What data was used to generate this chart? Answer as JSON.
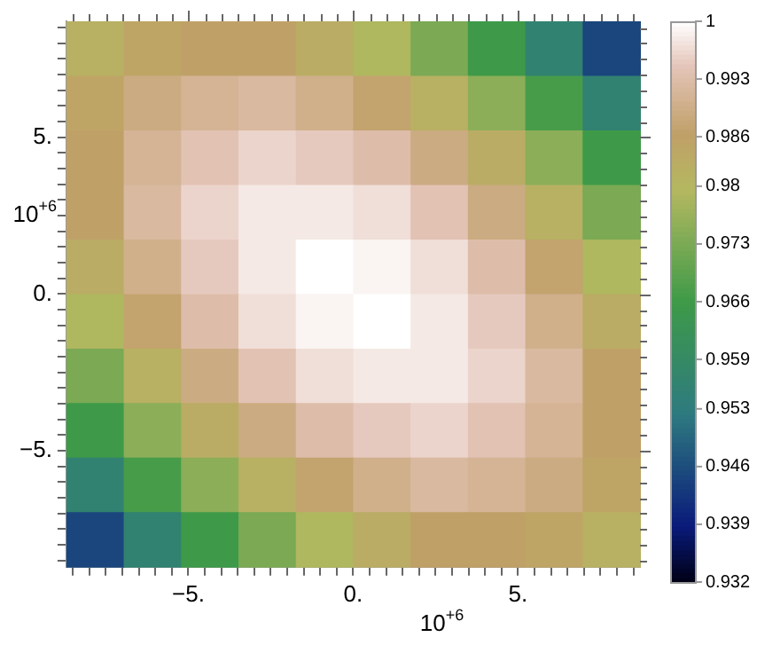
{
  "chart_data": {
    "type": "heatmap",
    "xlabel": "10$^{+6}$",
    "ylabel": "10$^{+6}$",
    "xlim": [
      -8.7,
      8.7
    ],
    "ylim": [
      -8.7,
      8.7
    ],
    "xticks": [
      {
        "value": -8.5,
        "label": null
      },
      {
        "value": -8,
        "label": null
      },
      {
        "value": -7.5,
        "label": null
      },
      {
        "value": -7,
        "label": null
      },
      {
        "value": -6.5,
        "label": null
      },
      {
        "value": -6,
        "label": null
      },
      {
        "value": -5.5,
        "label": null
      },
      {
        "value": -5,
        "label": "−5."
      },
      {
        "value": -4.5,
        "label": null
      },
      {
        "value": -4,
        "label": null
      },
      {
        "value": -3.5,
        "label": null
      },
      {
        "value": -3,
        "label": null
      },
      {
        "value": -2.5,
        "label": null
      },
      {
        "value": -2,
        "label": null
      },
      {
        "value": -1.5,
        "label": null
      },
      {
        "value": -1,
        "label": null
      },
      {
        "value": -0.5,
        "label": null
      },
      {
        "value": 0,
        "label": "0."
      },
      {
        "value": 0.5,
        "label": null
      },
      {
        "value": 1,
        "label": null
      },
      {
        "value": 1.5,
        "label": null
      },
      {
        "value": 2,
        "label": null
      },
      {
        "value": 2.5,
        "label": null
      },
      {
        "value": 3,
        "label": null
      },
      {
        "value": 3.5,
        "label": null
      },
      {
        "value": 4,
        "label": null
      },
      {
        "value": 4.5,
        "label": null
      },
      {
        "value": 5,
        "label": "5."
      },
      {
        "value": 5.5,
        "label": null
      },
      {
        "value": 6,
        "label": null
      },
      {
        "value": 6.5,
        "label": null
      },
      {
        "value": 7,
        "label": null
      },
      {
        "value": 7.5,
        "label": null
      },
      {
        "value": 8,
        "label": null
      },
      {
        "value": 8.5,
        "label": null
      }
    ],
    "yticks": [
      {
        "value": -8.5,
        "label": null
      },
      {
        "value": -8,
        "label": null
      },
      {
        "value": -7.5,
        "label": null
      },
      {
        "value": -7,
        "label": null
      },
      {
        "value": -6.5,
        "label": null
      },
      {
        "value": -6,
        "label": null
      },
      {
        "value": -5.5,
        "label": null
      },
      {
        "value": -5,
        "label": "−5."
      },
      {
        "value": -4.5,
        "label": null
      },
      {
        "value": -4,
        "label": null
      },
      {
        "value": -3.5,
        "label": null
      },
      {
        "value": -3,
        "label": null
      },
      {
        "value": -2.5,
        "label": null
      },
      {
        "value": -2,
        "label": null
      },
      {
        "value": -1.5,
        "label": null
      },
      {
        "value": -1,
        "label": null
      },
      {
        "value": -0.5,
        "label": null
      },
      {
        "value": 0,
        "label": "0."
      },
      {
        "value": 0.5,
        "label": null
      },
      {
        "value": 1,
        "label": null
      },
      {
        "value": 1.5,
        "label": null
      },
      {
        "value": 2,
        "label": null
      },
      {
        "value": 2.5,
        "label": null
      },
      {
        "value": 3,
        "label": null
      },
      {
        "value": 3.5,
        "label": null
      },
      {
        "value": 4,
        "label": null
      },
      {
        "value": 4.5,
        "label": null
      },
      {
        "value": 5,
        "label": "5."
      },
      {
        "value": 5.5,
        "label": null
      },
      {
        "value": 6,
        "label": null
      },
      {
        "value": 6.5,
        "label": null
      },
      {
        "value": 7,
        "label": null
      },
      {
        "value": 7.5,
        "label": null
      },
      {
        "value": 8,
        "label": null
      },
      {
        "value": 8.5,
        "label": null
      }
    ],
    "cells": [
      [
        0.982,
        0.985,
        0.986,
        0.986,
        0.983,
        0.979,
        0.973,
        0.966,
        0.956,
        0.945
      ],
      [
        0.985,
        0.989,
        0.991,
        0.992,
        0.99,
        0.987,
        0.982,
        0.975,
        0.967,
        0.956
      ],
      [
        0.986,
        0.991,
        0.994,
        0.996,
        0.995,
        0.993,
        0.989,
        0.983,
        0.975,
        0.966
      ],
      [
        0.986,
        0.992,
        0.996,
        0.998,
        0.998,
        0.997,
        0.994,
        0.989,
        0.982,
        0.973
      ],
      [
        0.983,
        0.99,
        0.995,
        0.998,
        1.0,
        0.999,
        0.997,
        0.993,
        0.987,
        0.979
      ],
      [
        0.979,
        0.987,
        0.993,
        0.997,
        0.999,
        1.0,
        0.998,
        0.995,
        0.99,
        0.983
      ],
      [
        0.973,
        0.982,
        0.989,
        0.994,
        0.997,
        0.998,
        0.998,
        0.996,
        0.992,
        0.986
      ],
      [
        0.966,
        0.975,
        0.983,
        0.989,
        0.993,
        0.995,
        0.996,
        0.994,
        0.991,
        0.986
      ],
      [
        0.956,
        0.967,
        0.975,
        0.982,
        0.987,
        0.99,
        0.992,
        0.991,
        0.989,
        0.985
      ],
      [
        0.945,
        0.956,
        0.966,
        0.973,
        0.979,
        0.983,
        0.986,
        0.986,
        0.985,
        0.982
      ]
    ],
    "clim": [
      0.932,
      1
    ],
    "cticks": [
      0.932,
      0.939,
      0.946,
      0.953,
      0.959,
      0.966,
      0.973,
      0.98,
      0.986,
      0.993,
      1
    ],
    "legend": false
  }
}
